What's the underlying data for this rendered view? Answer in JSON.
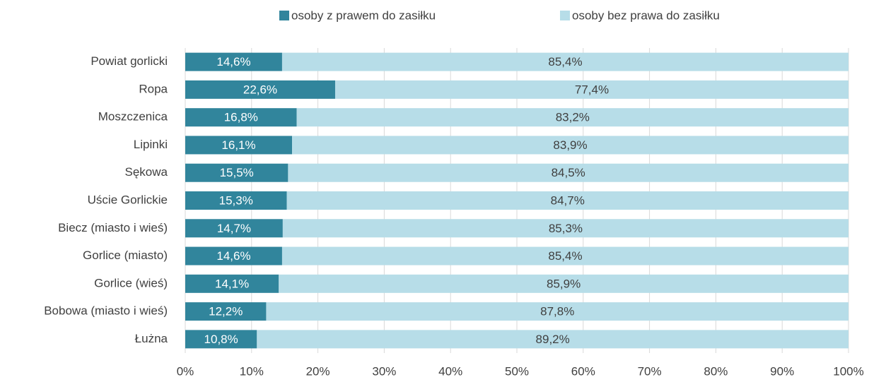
{
  "chart_data": {
    "type": "bar",
    "orientation": "horizontal",
    "stacked": true,
    "legend": "top",
    "grid": true,
    "categories": [
      "Powiat gorlicki",
      "Ropa",
      "Moszczenica",
      "Lipinki",
      "Sękowa",
      "Uście Gorlickie",
      "Biecz (miasto i wieś)",
      "Gorlice (miasto)",
      "Gorlice (wieś)",
      "Bobowa (miasto i wieś)",
      "Łużna"
    ],
    "series": [
      {
        "name": "osoby z prawem do zasiłku",
        "color": "#31859c",
        "values": [
          14.6,
          22.6,
          16.8,
          16.1,
          15.5,
          15.3,
          14.7,
          14.6,
          14.1,
          12.2,
          10.8
        ],
        "value_labels": [
          "14,6%",
          "22,6%",
          "16,8%",
          "16,1%",
          "15,5%",
          "15,3%",
          "14,7%",
          "14,6%",
          "14,1%",
          "12,2%",
          "10,8%"
        ]
      },
      {
        "name": "osoby bez prawa do zasiłku",
        "color": "#b7dde8",
        "values": [
          85.4,
          77.4,
          83.2,
          83.9,
          84.5,
          84.7,
          85.3,
          85.4,
          85.9,
          87.8,
          89.2
        ],
        "value_labels": [
          "85,4%",
          "77,4%",
          "83,2%",
          "83,9%",
          "84,5%",
          "84,7%",
          "85,3%",
          "85,4%",
          "85,9%",
          "87,8%",
          "89,2%"
        ]
      }
    ],
    "xlim": [
      0,
      100
    ],
    "xticks": [
      {
        "value": 0,
        "label": "0%"
      },
      {
        "value": 10,
        "label": "10%"
      },
      {
        "value": 20,
        "label": "20%"
      },
      {
        "value": 30,
        "label": "30%"
      },
      {
        "value": 40,
        "label": "40%"
      },
      {
        "value": 50,
        "label": "50%"
      },
      {
        "value": 60,
        "label": "60%"
      },
      {
        "value": 70,
        "label": "70%"
      },
      {
        "value": 80,
        "label": "80%"
      },
      {
        "value": 90,
        "label": "90%"
      },
      {
        "value": 100,
        "label": "100%"
      }
    ]
  }
}
